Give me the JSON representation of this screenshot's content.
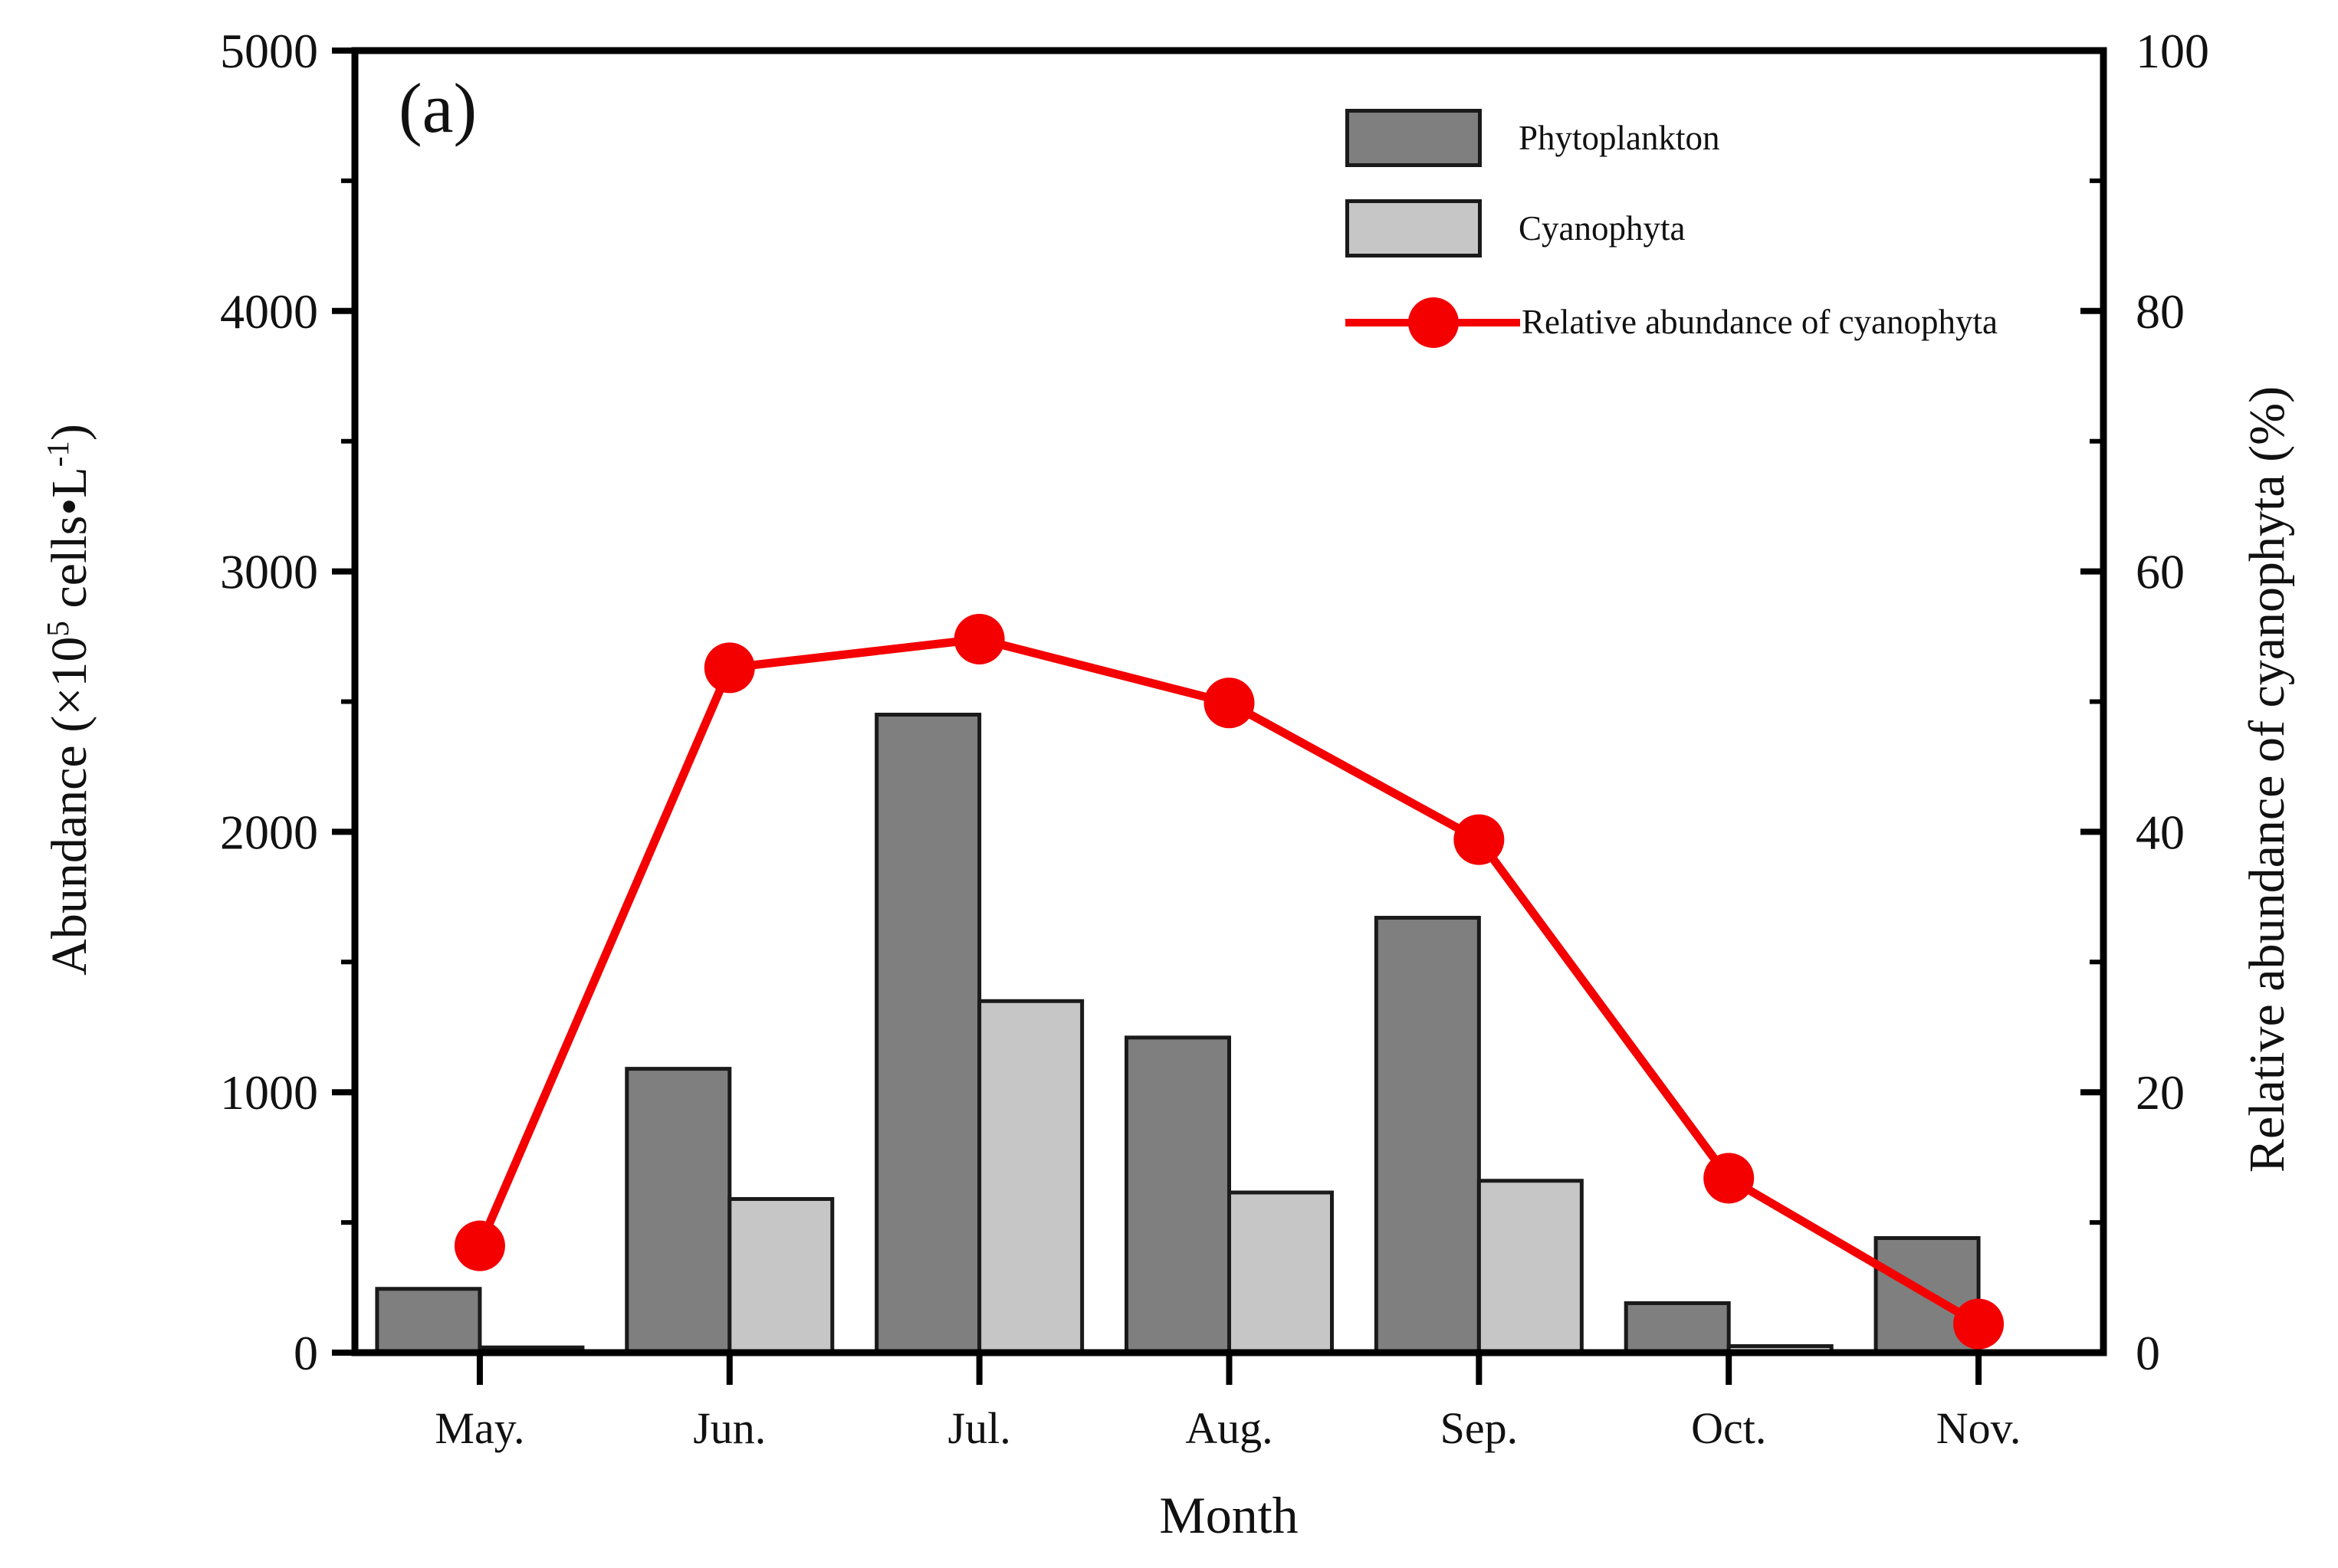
{
  "panel_label": "(a)",
  "colors": {
    "phytoplankton_fill": "#7f7f7f",
    "cyanophyta_fill": "#c6c6c6",
    "bar_edge": "#1a1a1a",
    "line_red": "#f40000",
    "axis_black": "#000000"
  },
  "legend": {
    "items": [
      {
        "label": "Phytoplankton",
        "swatch": "dark-gray-box"
      },
      {
        "label": "Cyanophyta",
        "swatch": "light-gray-box"
      },
      {
        "label": "Relative abundance of cyanophyta",
        "swatch": "red-line-circle-marker"
      }
    ]
  },
  "axes": {
    "x_title": "Month",
    "left_title_parts": {
      "p1": "Abundance (×10",
      "sup1": "5",
      "p2": " cells•L",
      "sup2": "-1",
      "p3": ")"
    },
    "right_title": "Relative abundance of cyanophyta (%)"
  },
  "chart_data": {
    "type": "bar+line combo",
    "title": "",
    "xlabel": "Month",
    "ylabel_left": "Abundance (×10^5 cells•L^-1)",
    "ylabel_right": "Relative abundance of cyanophyta (%)",
    "categories": [
      "May.",
      "Jun.",
      "Jul.",
      "Aug.",
      "Sep.",
      "Oct.",
      "Nov."
    ],
    "series": [
      {
        "name": "Phytoplankton",
        "type": "bar",
        "axis": "left",
        "values": [
          245,
          1090,
          2450,
          1210,
          1670,
          190,
          440
        ]
      },
      {
        "name": "Cyanophyta",
        "type": "bar",
        "axis": "left",
        "values": [
          20,
          590,
          1350,
          615,
          660,
          25,
          5
        ]
      },
      {
        "name": "Relative abundance of cyanophyta",
        "type": "line",
        "axis": "right",
        "values": [
          8.2,
          52.6,
          54.8,
          49.9,
          39.4,
          13.4,
          2.2
        ]
      }
    ],
    "ylim_left": [
      0,
      5000
    ],
    "ylim_right": [
      0,
      100
    ],
    "left_major_ticks": [
      0,
      1000,
      2000,
      3000,
      4000,
      5000
    ],
    "left_minor_step": 500,
    "right_major_ticks": [
      0,
      20,
      40,
      60,
      80,
      100
    ],
    "right_minor_step": 10,
    "grid": "off",
    "legend_position": "top-right-inside",
    "frame": "full-box"
  }
}
